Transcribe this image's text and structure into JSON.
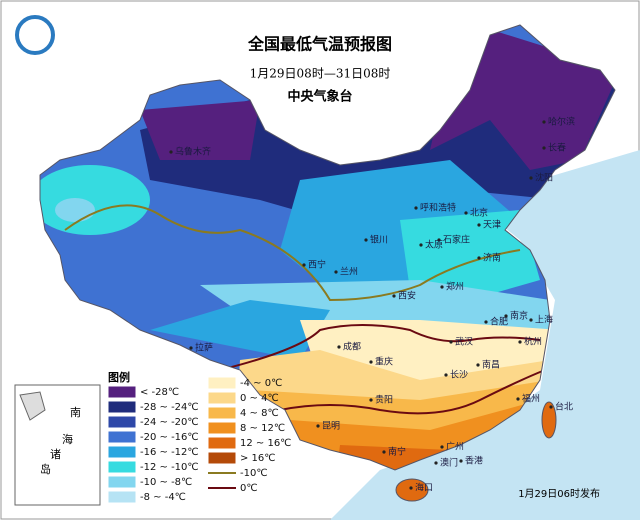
{
  "header": {
    "title": "全国最低气温预报图",
    "subtitle": "1月29日08时—31日08时",
    "issuer": "中央气象台"
  },
  "legend": {
    "title": "图例",
    "items": [
      {
        "label": "< -28℃",
        "color": "#55207e"
      },
      {
        "label": "-28 ~ -24℃",
        "color": "#1f2c7c"
      },
      {
        "label": "-24 ~ -20℃",
        "color": "#2e48a8"
      },
      {
        "label": "-20 ~ -16℃",
        "color": "#3f72d2"
      },
      {
        "label": "-16 ~ -12℃",
        "color": "#2aa6e0"
      },
      {
        "label": "-12 ~ -10℃",
        "color": "#36dbe0"
      },
      {
        "label": "-10 ~ -8℃",
        "color": "#82d6ef"
      },
      {
        "label": "-8 ~ -4℃",
        "color": "#b6e3f4"
      },
      {
        "label": "-4 ~ 0℃",
        "color": "#fff0c2"
      },
      {
        "label": "0 ~ 4℃",
        "color": "#fcd88a"
      },
      {
        "label": "4 ~ 8℃",
        "color": "#f8b84a"
      },
      {
        "label": "8 ~ 12℃",
        "color": "#f0901f"
      },
      {
        "label": "12 ~ 16℃",
        "color": "#e06a10"
      },
      {
        "label": "> 16℃",
        "color": "#b44a08"
      }
    ],
    "isotherms": [
      {
        "label": "-10℃",
        "color": "#8a7a20"
      },
      {
        "label": "0℃",
        "color": "#6a0a12"
      }
    ]
  },
  "cities": [
    "乌鲁木齐",
    "哈尔滨",
    "长春",
    "沈阳",
    "呼和浩特",
    "北京",
    "天津",
    "石家庄",
    "太原",
    "济南",
    "银川",
    "西宁",
    "兰州",
    "郑州",
    "西安",
    "合肥",
    "南京",
    "上海",
    "武汉",
    "杭州",
    "成都",
    "重庆",
    "拉萨",
    "长沙",
    "南昌",
    "贵阳",
    "昆明",
    "福州",
    "台北",
    "南宁",
    "广州",
    "香港",
    "澳门",
    "海口"
  ],
  "inset": {
    "labels": [
      "南",
      "海",
      "诸",
      "岛"
    ]
  },
  "footer": "1月29日06时发布"
}
